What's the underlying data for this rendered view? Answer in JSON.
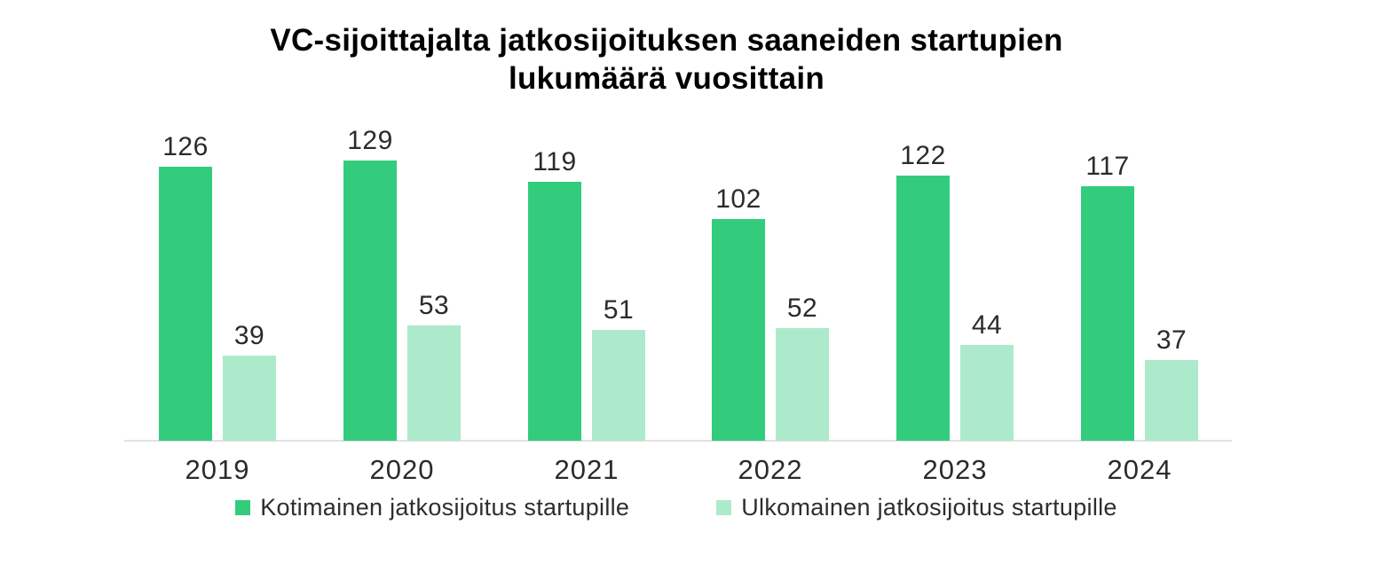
{
  "title_lines": [
    "VC-sijoittajalta jatkosijoituksen saaneiden startupien",
    "lukumäärä vuosittain"
  ],
  "chart_data": {
    "type": "bar",
    "title": "VC-sijoittajalta jatkosijoituksen saaneiden startupien lukumäärä vuosittain",
    "categories": [
      "2019",
      "2020",
      "2021",
      "2022",
      "2023",
      "2024"
    ],
    "series": [
      {
        "name": "Kotimainen jatkosijoitus startupille",
        "color": "#33CC7D",
        "values": [
          126,
          129,
          119,
          102,
          122,
          117
        ]
      },
      {
        "name": "Ulkomainen jatkosijoitus startupille",
        "color": "#ACEACB",
        "values": [
          39,
          53,
          51,
          52,
          44,
          37
        ]
      }
    ],
    "value_labels_shown": true,
    "xlabel": "",
    "ylabel": "",
    "ylim": [
      0,
      140
    ],
    "grid": false,
    "legend_position": "bottom",
    "axis_line_color": "#E1E1E1",
    "text_color": "#2B2B2B",
    "title_color": "#000000",
    "background": "#FFFFFF"
  }
}
